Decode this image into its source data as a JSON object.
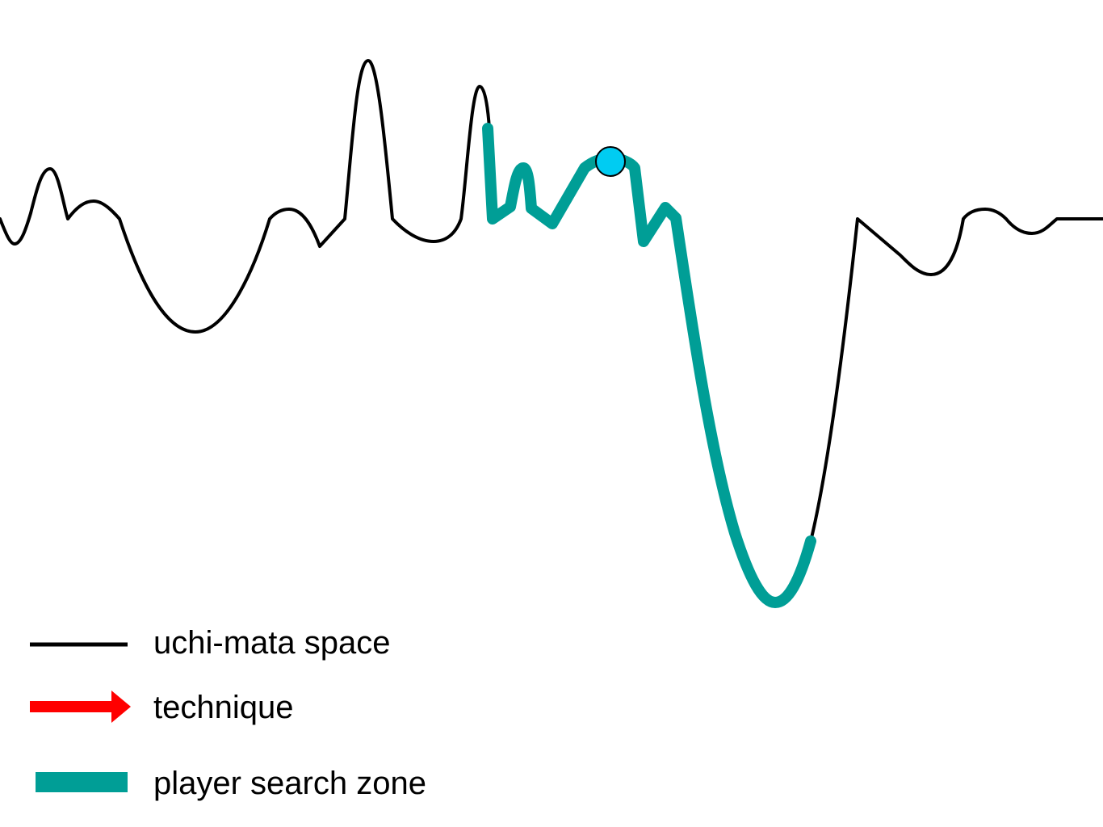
{
  "legend": {
    "landscape_label": "uchi-mata space",
    "technique_label": "technique",
    "search_zone_label": "player search zone"
  },
  "colors": {
    "landscape": "#000000",
    "technique": "#ff0000",
    "search_zone": "#009e96",
    "player_marker": "#00ccf2"
  }
}
